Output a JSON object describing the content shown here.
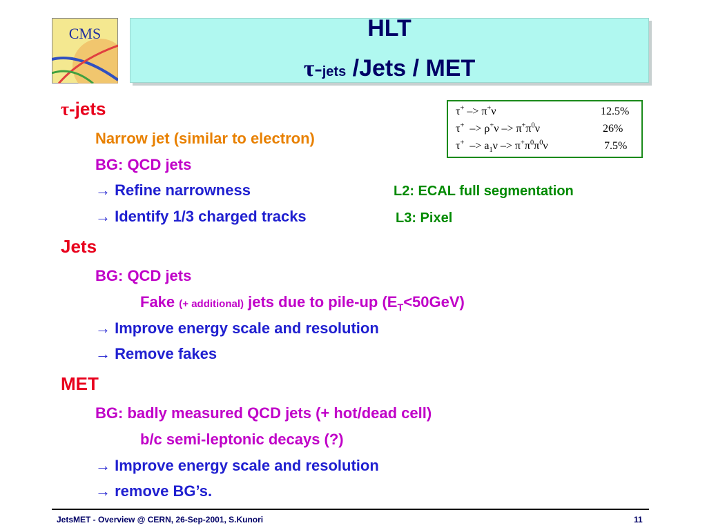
{
  "logo": {
    "text": "CMS"
  },
  "header": {
    "title": "HLT",
    "subtitle": {
      "symbol": "τ-",
      "small": "jets",
      "rest": " /Jets / MET"
    }
  },
  "decay_table": {
    "rows": [
      {
        "decay": [
          "τ",
          "+",
          " –> π",
          "+",
          "ν"
        ],
        "rate": "12.5%"
      },
      {
        "decay": [
          "τ",
          "+",
          "  –> ρ",
          "+",
          "ν –> π",
          "+",
          "π",
          "0",
          "ν"
        ],
        "rate": "26%"
      },
      {
        "decay": [
          "τ",
          "+",
          "  –> a",
          "1",
          "ν –> π",
          "+",
          "π",
          "0",
          "π",
          "0",
          "ν"
        ],
        "rate": "7.5%"
      }
    ]
  },
  "sections": [
    {
      "heading": {
        "symbol": "τ",
        "text": "-jets"
      },
      "lines": [
        "Narrow jet (similar to electron)",
        "BG: QCD jets",
        "→ Refine narrowness",
        "→ Identify 1/3 charged tracks"
      ],
      "notes": [
        "L2: ECAL full segmentation",
        "L3: Pixel"
      ]
    },
    {
      "heading": {
        "text": "Jets"
      },
      "lines": [
        "BG: QCD jets",
        "→ Improve energy scale and resolution",
        "→ Remove fakes"
      ],
      "fake_line": [
        "Fake ",
        "(+ additional)",
        " jets due to pile-up (E",
        "T",
        "<50GeV)"
      ]
    },
    {
      "heading": {
        "text": "MET"
      },
      "lines": [
        "BG: badly measured QCD jets (+ hot/dead cell)",
        "b/c semi-leptonic decays (?)",
        "→ Improve energy scale and resolution",
        "→ remove BG’s."
      ]
    }
  ],
  "footer": {
    "text": "JetsMET - Overview @ CERN, 26-Sep-2001, S.Kunori",
    "page": "11"
  }
}
